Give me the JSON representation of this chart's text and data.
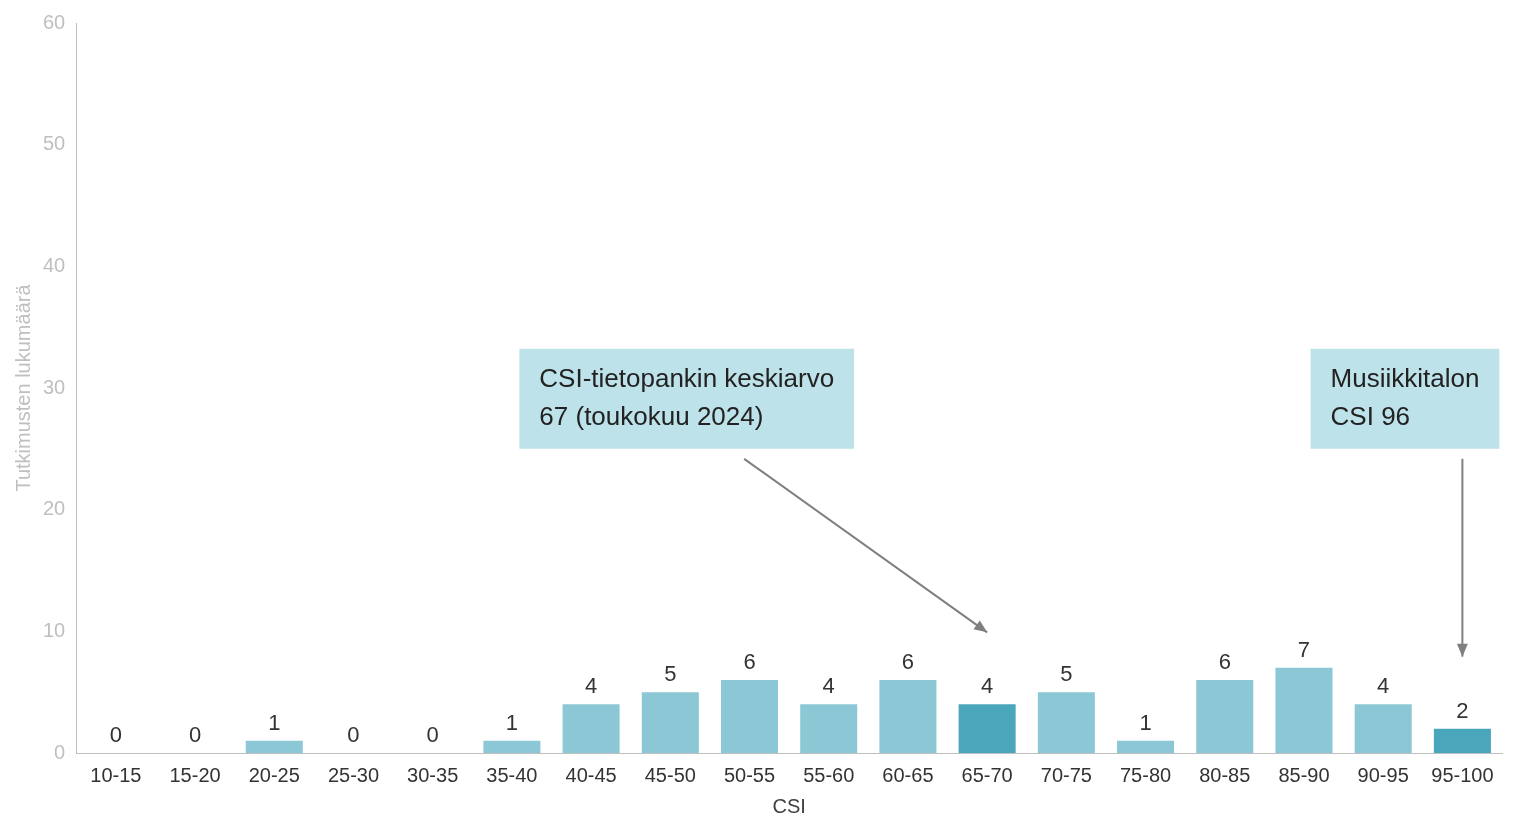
{
  "chart_data": {
    "type": "bar",
    "xlabel": "CSI",
    "ylabel": "Tutkimusten lukumäärä",
    "categories": [
      "10-15",
      "15-20",
      "20-25",
      "25-30",
      "30-35",
      "35-40",
      "40-45",
      "45-50",
      "50-55",
      "55-60",
      "60-65",
      "65-70",
      "70-75",
      "75-80",
      "80-85",
      "85-90",
      "90-95",
      "95-100"
    ],
    "values": [
      0,
      0,
      1,
      0,
      0,
      1,
      4,
      5,
      6,
      4,
      6,
      4,
      5,
      1,
      6,
      7,
      4,
      2
    ],
    "colors": [
      "#8cc7d5",
      "#8cc7d5",
      "#8cc7d5",
      "#8cc7d5",
      "#8cc7d5",
      "#8cc7d5",
      "#8cc7d5",
      "#8cc7d5",
      "#8cc7d5",
      "#8cc7d5",
      "#8cc7d5",
      "#4aa6bb",
      "#8cc7d5",
      "#8cc7d5",
      "#8cc7d5",
      "#8cc7d5",
      "#8cc7d5",
      "#4aa6bb"
    ],
    "ylim": [
      0,
      60
    ],
    "yticks": [
      0,
      10,
      20,
      30,
      40,
      50,
      60
    ],
    "grid": false,
    "legend": false,
    "data_labels": true,
    "annotations": [
      "CSI-tietopankin keskiarvo 67 (toukokuu 2024)",
      "Musiikkitalon CSI 96"
    ]
  }
}
